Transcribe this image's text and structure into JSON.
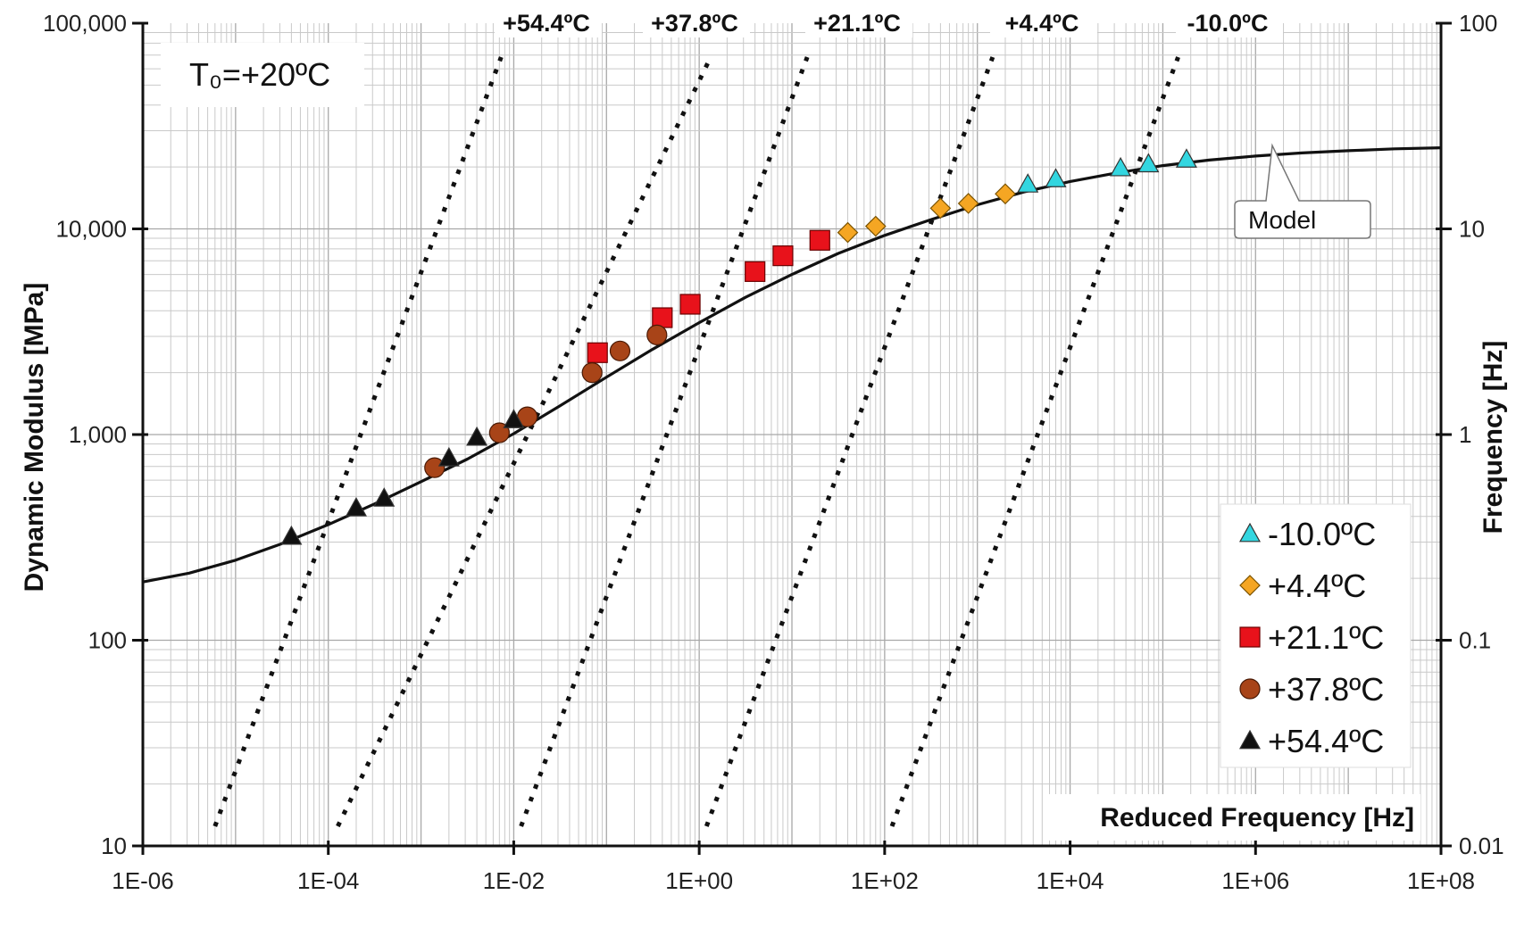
{
  "chart_data": {
    "type": "scatter",
    "title": "",
    "xlabel": "Reduced Frequency [Hz]",
    "ylabel": "Dynamic Modulus [MPa]",
    "y2label": "Frequency [Hz]",
    "xscale": "log",
    "yscale": "log",
    "y2scale": "log",
    "xlim": [
      1e-06,
      100000000.0
    ],
    "ylim": [
      10,
      100000
    ],
    "y2lim": [
      0.01,
      100
    ],
    "grid": true,
    "legend_position": "bottom-right",
    "x_ticks": [
      {
        "value": 1e-06,
        "label": "1E-06"
      },
      {
        "value": 0.0001,
        "label": "1E-04"
      },
      {
        "value": 0.01,
        "label": "1E-02"
      },
      {
        "value": 1,
        "label": "1E+00"
      },
      {
        "value": 100.0,
        "label": "1E+02"
      },
      {
        "value": 10000.0,
        "label": "1E+04"
      },
      {
        "value": 1000000.0,
        "label": "1E+06"
      },
      {
        "value": 100000000.0,
        "label": "1E+08"
      }
    ],
    "y_ticks": [
      {
        "value": 10,
        "label": "10"
      },
      {
        "value": 100,
        "label": "100"
      },
      {
        "value": 1000,
        "label": "1,000"
      },
      {
        "value": 10000,
        "label": "10,000"
      },
      {
        "value": 100000,
        "label": "100,000"
      }
    ],
    "y2_ticks": [
      {
        "value": 0.01,
        "label": "0.01"
      },
      {
        "value": 0.1,
        "label": "0.1"
      },
      {
        "value": 1,
        "label": "1"
      },
      {
        "value": 10,
        "label": "10"
      },
      {
        "value": 100,
        "label": "100"
      }
    ],
    "reference_temperature_label": "T₀=+20ºC",
    "series": [
      {
        "name": "-10.0ºC",
        "marker": "triangle",
        "color": "#33d6e0",
        "points": [
          [
            3500.0,
            16500
          ],
          [
            7000.0,
            17500
          ],
          [
            35000.0,
            19800
          ],
          [
            70000.0,
            20700
          ],
          [
            180000.0,
            21800
          ]
        ]
      },
      {
        "name": "+4.4ºC",
        "marker": "diamond",
        "color": "#f5a623",
        "points": [
          [
            40.0,
            9600
          ],
          [
            80.0,
            10300
          ],
          [
            400.0,
            12600
          ],
          [
            800.0,
            13300
          ],
          [
            2000.0,
            14800
          ]
        ]
      },
      {
        "name": "+21.1ºC",
        "marker": "square",
        "color": "#e8121b",
        "points": [
          [
            0.08,
            2500
          ],
          [
            0.4,
            3700
          ],
          [
            0.8,
            4300
          ],
          [
            4,
            6200
          ],
          [
            8,
            7400
          ],
          [
            20,
            8800
          ]
        ]
      },
      {
        "name": "+37.8ºC",
        "marker": "circle",
        "color": "#a84418",
        "points": [
          [
            0.0014,
            690
          ],
          [
            0.007,
            1020
          ],
          [
            0.014,
            1220
          ],
          [
            0.07,
            2000
          ],
          [
            0.14,
            2550
          ],
          [
            0.35,
            3050
          ]
        ]
      },
      {
        "name": "+54.4ºC",
        "marker": "triangle",
        "color": "#111111",
        "points": [
          [
            4e-05,
            320
          ],
          [
            0.0002,
            440
          ],
          [
            0.0004,
            490
          ],
          [
            0.002,
            770
          ],
          [
            0.004,
            970
          ],
          [
            0.01,
            1180
          ]
        ]
      }
    ],
    "model": {
      "name": "Model",
      "x": [
        1e-06,
        3.16e-06,
        1e-05,
        3.16e-05,
        0.0001,
        0.000316,
        0.001,
        0.00316,
        0.01,
        0.0316,
        0.1,
        0.316,
        1,
        3.16,
        10,
        31.6,
        100,
        316,
        1000,
        3160,
        10000.0,
        31600.0,
        100000.0,
        316000.0,
        1000000.0,
        3160000.0,
        10000000.0,
        31600000.0,
        100000000.0
      ],
      "y": [
        192,
        212,
        245,
        295,
        365,
        460,
        590,
        760,
        1010,
        1380,
        1900,
        2600,
        3500,
        4650,
        6000,
        7600,
        9300,
        11100,
        13100,
        15100,
        17000,
        18700,
        20300,
        21600,
        22600,
        23400,
        24000,
        24500,
        24800
      ]
    },
    "isotherms": [
      {
        "name": "+54.4ºC",
        "x_at_bottom": 5e-06,
        "x_at_top": 0.01
      },
      {
        "name": "+37.8ºC",
        "x_at_bottom": 0.0001,
        "x_at_top": 2.0
      },
      {
        "name": "+21.1ºC",
        "x_at_bottom": 0.01,
        "x_at_top": 20.0
      },
      {
        "name": "+4.4ºC",
        "x_at_bottom": 1.0,
        "x_at_top": 2000.0
      },
      {
        "name": "-10.0ºC",
        "x_at_bottom": 100.0,
        "x_at_top": 200000.0
      }
    ],
    "isotherm_labels": [
      "+54.4ºC",
      "+37.8ºC",
      "+21.1ºC",
      "+4.4ºC",
      "-10.0ºC"
    ]
  }
}
